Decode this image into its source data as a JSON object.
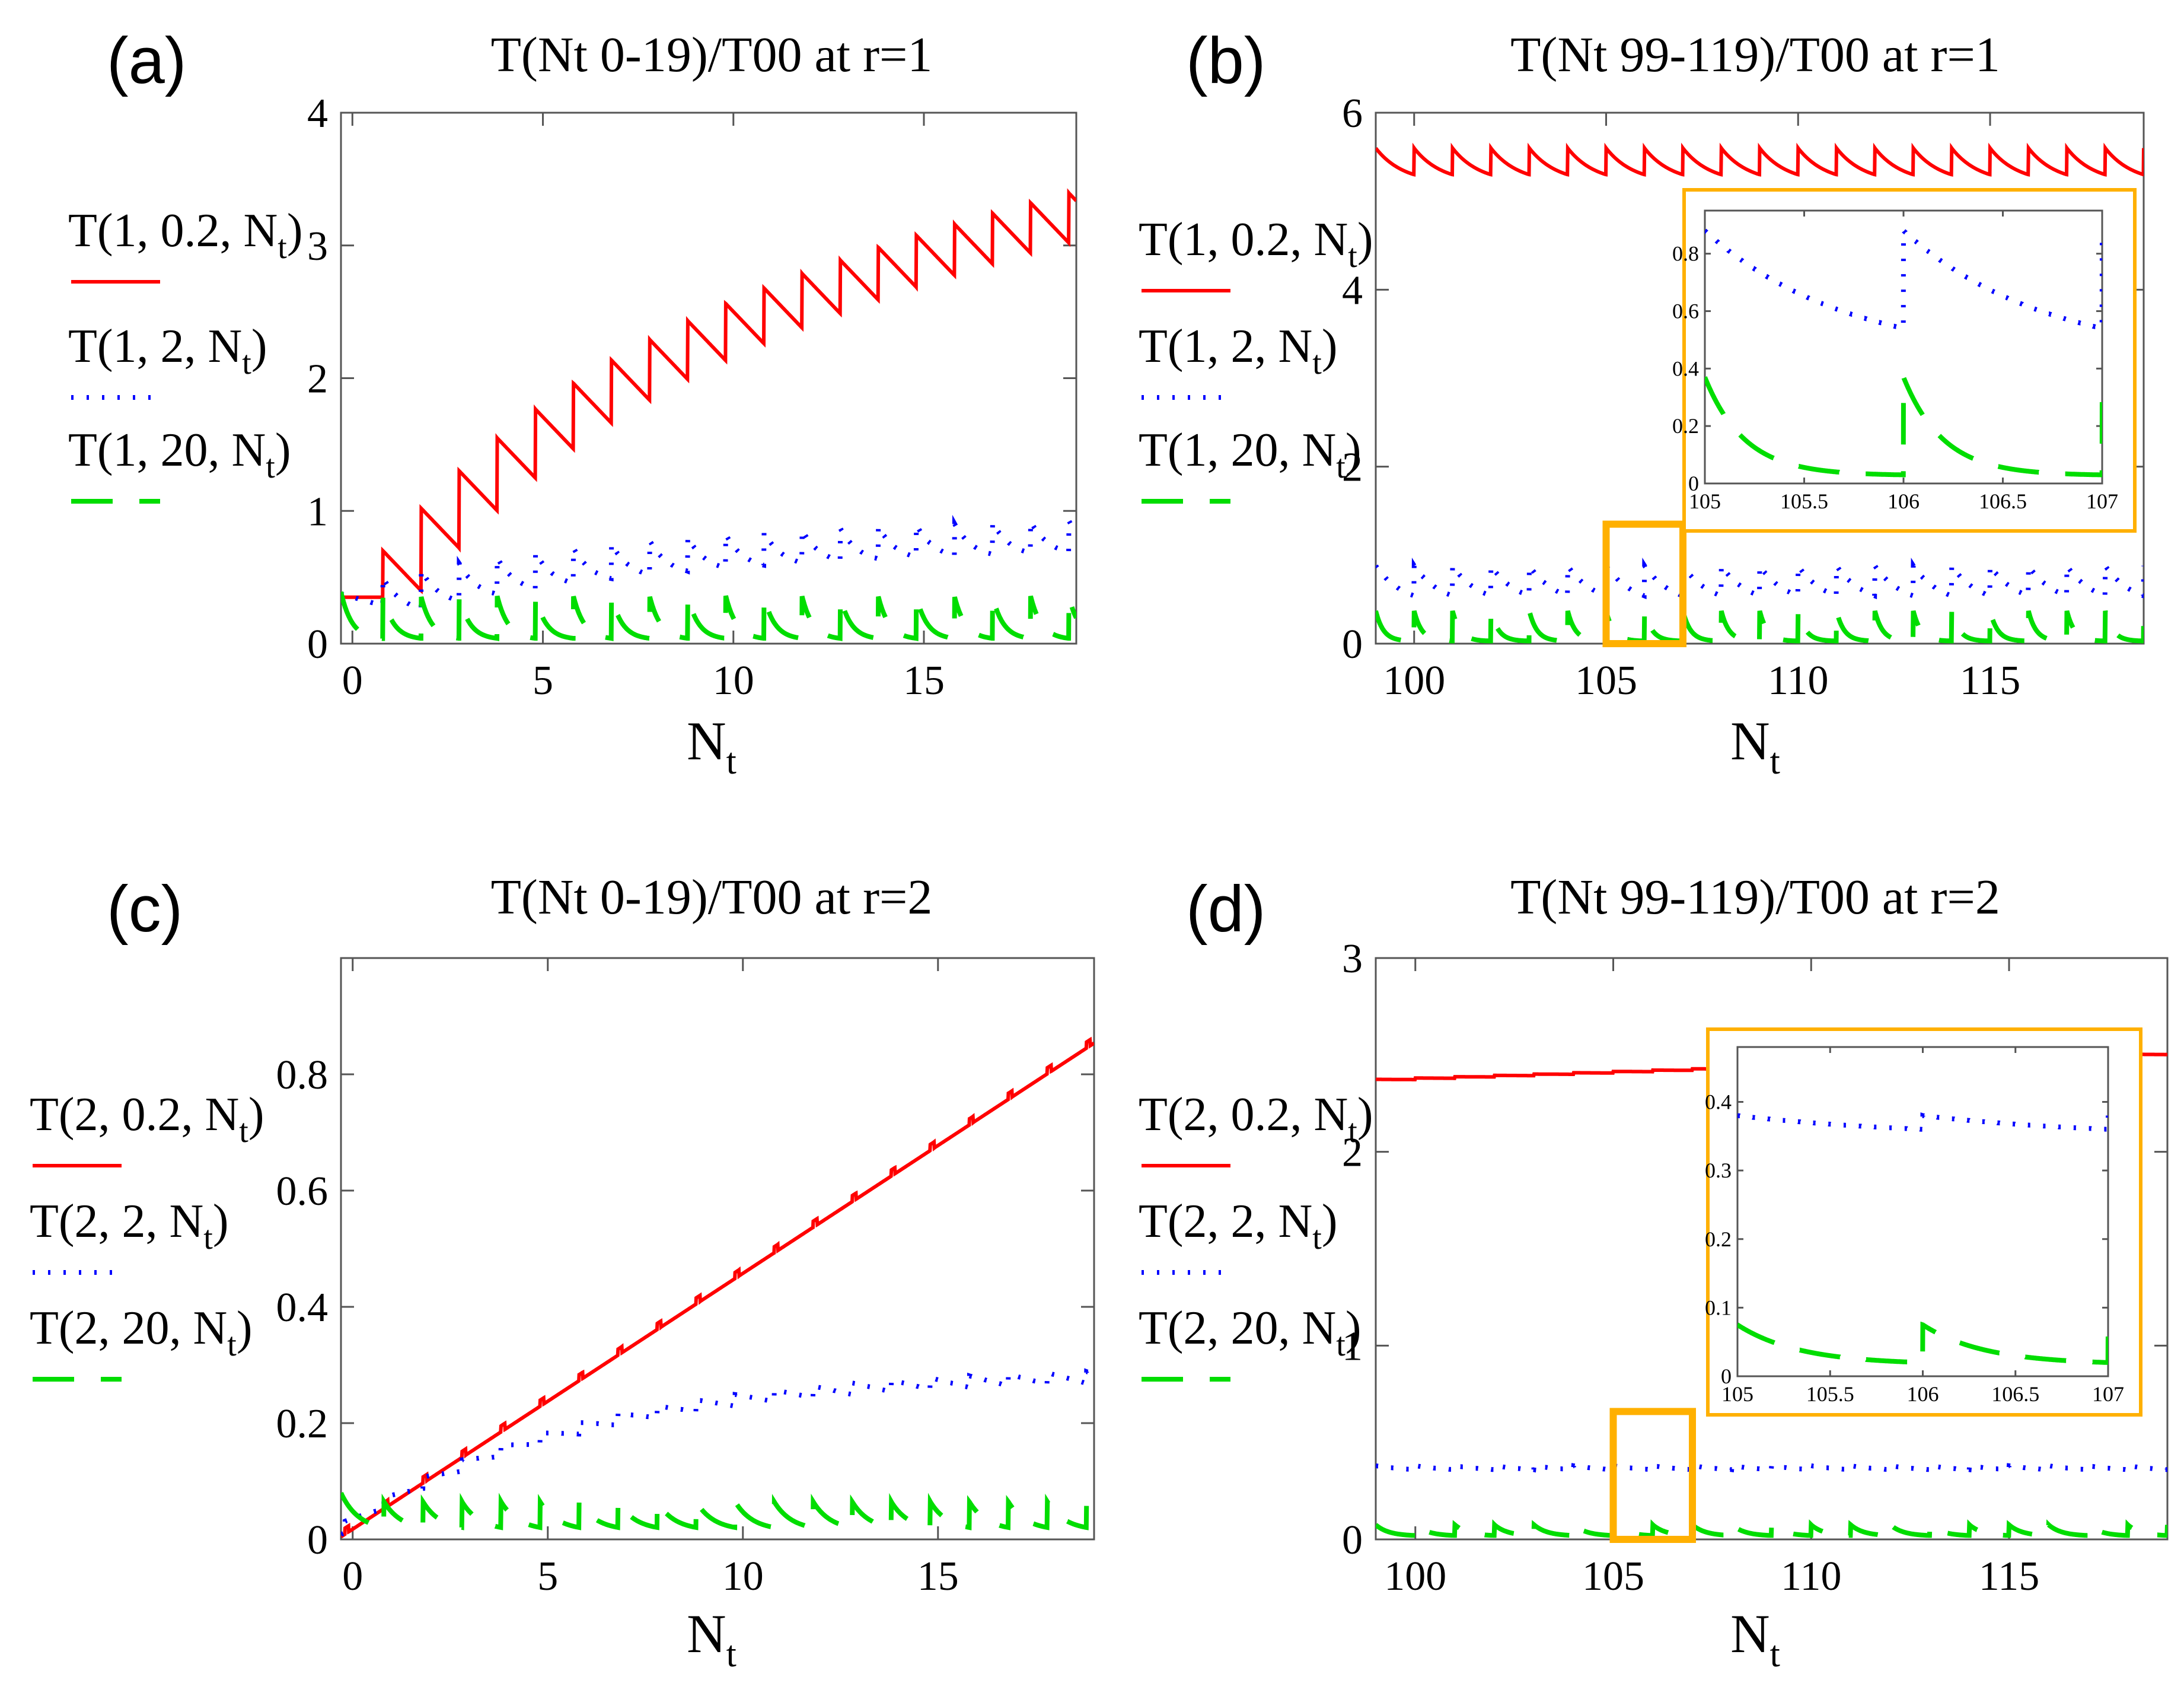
{
  "chart_data": [
    {
      "id": "a",
      "panel_label": "(a)",
      "type": "line",
      "title": "T(Nt 0-19)/T00 at r=1",
      "xlabel": "N",
      "xlabel_sub": "t",
      "xlim": [
        -0.3,
        19
      ],
      "ylim": [
        0,
        4
      ],
      "xticks": [
        0,
        5,
        10,
        15
      ],
      "yticks": [
        0,
        1,
        2,
        3,
        4
      ],
      "legend": [
        "T(1,0.2,N_t)",
        "T(1,2,N_t)",
        "T(1,20,N_t)"
      ],
      "legend_text": [
        {
          "pre": "T(1, 0.2, N",
          "sub": "t",
          "post": ")"
        },
        {
          "pre": "T(1, 2, N",
          "sub": "t",
          "post": ")"
        },
        {
          "pre": "T(1, 20, N",
          "sub": "t",
          "post": ")"
        }
      ],
      "series": [
        {
          "name": "T(1,0.2,N_t)",
          "style": "solid",
          "color": "#ff0000",
          "model": "saw",
          "params": {
            "base": 0.35,
            "step": 0.35,
            "grow": 0.27,
            "sat": 6,
            "drop": 0.3,
            "start": 0.35,
            "kick0": 0.35
          }
        },
        {
          "name": "T(1,2,N_t)",
          "style": "dotted",
          "color": "#0000ff",
          "model": "saw",
          "params": {
            "base": 0.38,
            "peakAmp": 0.6,
            "grow": 0.06,
            "sat": 8,
            "drop": 0.3,
            "start": 0.35
          }
        },
        {
          "name": "T(1,20,N_t)",
          "style": "dashed",
          "color": "#00dd00",
          "model": "spike",
          "params": {
            "peak": 0.36,
            "floor": 0.03,
            "decay": 3.5
          }
        }
      ]
    },
    {
      "id": "b",
      "panel_label": "(b)",
      "type": "line",
      "title": "T(Nt 99-119)/T00 at r=1",
      "xlabel": "N",
      "xlabel_sub": "t",
      "xlim": [
        99,
        119
      ],
      "ylim": [
        0,
        6
      ],
      "xticks": [
        100,
        105,
        110,
        115
      ],
      "yticks": [
        0,
        2,
        4,
        6
      ],
      "legend": [
        "T(1,0.2,N_t)",
        "T(1,2,N_t)",
        "T(1,20,N_t)"
      ],
      "legend_text": [
        {
          "pre": "T(1, 0.2, N",
          "sub": "t",
          "post": ")"
        },
        {
          "pre": "T(1, 2, N",
          "sub": "t",
          "post": ")"
        },
        {
          "pre": "T(1, 20, N",
          "sub": "t",
          "post": ")"
        }
      ],
      "highlight_box": [
        105,
        107,
        0,
        1.35
      ],
      "series": [
        {
          "name": "T(1,0.2,N_t)",
          "style": "solid",
          "color": "#ff0000",
          "model": "periodic",
          "params": {
            "top": 5.6,
            "bottom": 5.3,
            "decay": 1.4
          }
        },
        {
          "name": "T(1,2,N_t)",
          "style": "dotted",
          "color": "#0000ff",
          "model": "periodic",
          "params": {
            "top": 0.88,
            "bottom": 0.54,
            "decay": 1.4
          }
        },
        {
          "name": "T(1,20,N_t)",
          "style": "dashed",
          "color": "#00dd00",
          "model": "periodic",
          "params": {
            "top": 0.37,
            "bottom": 0.03,
            "decay": 5
          }
        }
      ],
      "inset": {
        "xlim": [
          105,
          107
        ],
        "ylim": [
          0,
          0.95
        ],
        "xticks": [
          105,
          105.5,
          106,
          106.5,
          107
        ],
        "xtick_labels": [
          "105",
          "105.5",
          "106",
          "106.5",
          "107"
        ],
        "yticks": [
          0,
          0.2,
          0.4,
          0.6,
          0.8
        ],
        "ytick_labels": [
          "0",
          "0.2",
          "0.4",
          "0.6",
          "0.8"
        ]
      }
    },
    {
      "id": "c",
      "panel_label": "(c)",
      "type": "line",
      "title": "T(Nt 0-19)/T00 at r=2",
      "xlabel": "N",
      "xlabel_sub": "t",
      "xlim": [
        -0.3,
        19
      ],
      "ylim": [
        0,
        1
      ],
      "xticks": [
        0,
        5,
        10,
        15
      ],
      "yticks": [
        0,
        0.2,
        0.4,
        0.6,
        0.8
      ],
      "legend": [
        "T(2,0.2,N_t)",
        "T(2,2,N_t)",
        "T(2,20,N_t)"
      ],
      "legend_text": [
        {
          "pre": "T(2, 0.2, N",
          "sub": "t",
          "post": ")"
        },
        {
          "pre": "T(2, 2, N",
          "sub": "t",
          "post": ")"
        },
        {
          "pre": "T(2, 20, N",
          "sub": "t",
          "post": ")"
        }
      ],
      "series": [
        {
          "name": "T(2,0.2,N_t)",
          "style": "solid",
          "color": "#ff0000",
          "model": "stair",
          "params": {
            "a": 0.02,
            "b": 0.044,
            "ripple": 0.008
          }
        },
        {
          "name": "T(2,2,N_t)",
          "style": "dotted",
          "color": "#0000ff",
          "model": "sat",
          "params": {
            "start": 0.03,
            "end": 0.29,
            "tau": 6,
            "ripple": 0.02
          }
        },
        {
          "name": "T(2,20,N_t)",
          "style": "dashed",
          "color": "#00dd00",
          "model": "spike",
          "params": {
            "peak": 0.065,
            "floor": 0.015,
            "decay": 2.2
          }
        }
      ]
    },
    {
      "id": "d",
      "panel_label": "(d)",
      "type": "line",
      "title": "T(Nt 99-119)/T00 at r=2",
      "xlabel": "N",
      "xlabel_sub": "t",
      "xlim": [
        99,
        119
      ],
      "ylim": [
        0,
        3
      ],
      "xticks": [
        100,
        105,
        110,
        115
      ],
      "yticks": [
        0,
        1,
        2,
        3
      ],
      "legend": [
        "T(2,0.2,N_t)",
        "T(2,2,N_t)",
        "T(2,20,N_t)"
      ],
      "legend_text": [
        {
          "pre": "T(2, 0.2, N",
          "sub": "t",
          "post": ")"
        },
        {
          "pre": "T(2, 2, N",
          "sub": "t",
          "post": ")"
        },
        {
          "pre": "T(2, 20, N",
          "sub": "t",
          "post": ")"
        }
      ],
      "highlight_box": [
        105,
        107,
        0,
        0.66
      ],
      "series": [
        {
          "name": "T(2,0.2,N_t)",
          "style": "solid",
          "color": "#ff0000",
          "model": "lin",
          "params": {
            "a": 2.37,
            "slope": 0.0068,
            "ripple": 0.008
          }
        },
        {
          "name": "T(2,2,N_t)",
          "style": "dotted",
          "color": "#0000ff",
          "model": "periodic",
          "params": {
            "top": 0.38,
            "bottom": 0.36,
            "decay": 1
          }
        },
        {
          "name": "T(2,20,N_t)",
          "style": "dashed",
          "color": "#00dd00",
          "model": "periodic",
          "params": {
            "top": 0.075,
            "bottom": 0.02,
            "decay": 3
          }
        }
      ],
      "inset": {
        "xlim": [
          105,
          107
        ],
        "ylim": [
          0,
          0.48
        ],
        "xticks": [
          105,
          105.5,
          106,
          106.5,
          107
        ],
        "xtick_labels": [
          "105",
          "105.5",
          "106",
          "106.5",
          "107"
        ],
        "yticks": [
          0,
          0.1,
          0.2,
          0.3,
          0.4
        ],
        "ytick_labels": [
          "0",
          "0.1",
          "0.2",
          "0.3",
          "0.4"
        ]
      }
    }
  ]
}
